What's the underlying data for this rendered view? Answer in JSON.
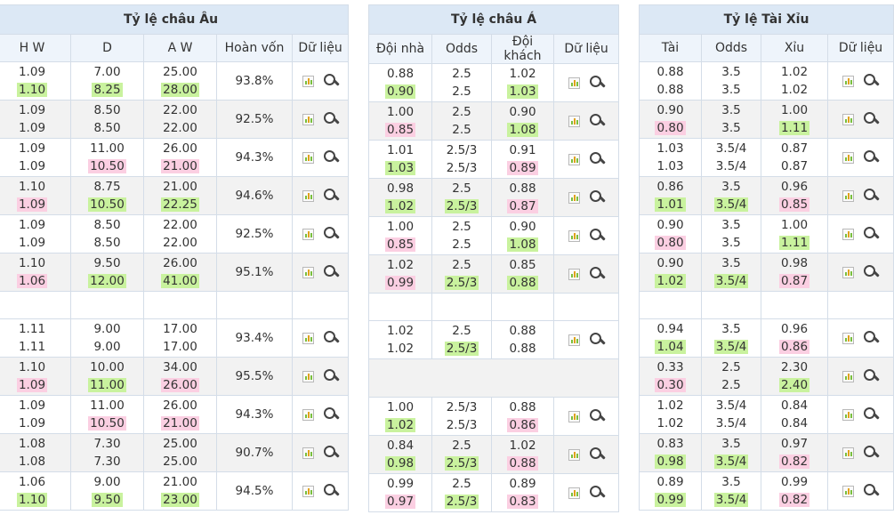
{
  "europe": {
    "title": "Tỷ lệ châu Âu",
    "columns": [
      "H W",
      "D",
      "A W",
      "Hoàn vốn",
      "Dữ liệu"
    ],
    "rows": [
      {
        "hw": [
          "1.09",
          "1.10"
        ],
        "d": [
          "7.00",
          "8.25"
        ],
        "aw": [
          "25.00",
          "28.00"
        ],
        "ret": "93.8%",
        "hw_t": "up",
        "d_t": "up",
        "aw_t": "up"
      },
      {
        "hw": [
          "1.09",
          "1.09"
        ],
        "d": [
          "8.50",
          "8.50"
        ],
        "aw": [
          "22.00",
          "22.00"
        ],
        "ret": "92.5%",
        "hw_t": "",
        "d_t": "",
        "aw_t": ""
      },
      {
        "hw": [
          "1.09",
          "1.09"
        ],
        "d": [
          "11.00",
          "10.50"
        ],
        "aw": [
          "26.00",
          "21.00"
        ],
        "ret": "94.3%",
        "hw_t": "",
        "d_t": "down",
        "aw_t": "down"
      },
      {
        "hw": [
          "1.10",
          "1.09"
        ],
        "d": [
          "8.75",
          "10.50"
        ],
        "aw": [
          "21.00",
          "22.25"
        ],
        "ret": "94.6%",
        "hw_t": "down",
        "d_t": "up",
        "aw_t": "up"
      },
      {
        "hw": [
          "1.09",
          "1.09"
        ],
        "d": [
          "8.50",
          "8.50"
        ],
        "aw": [
          "22.00",
          "22.00"
        ],
        "ret": "92.5%",
        "hw_t": "",
        "d_t": "",
        "aw_t": ""
      },
      {
        "hw": [
          "1.10",
          "1.06"
        ],
        "d": [
          "9.50",
          "12.00"
        ],
        "aw": [
          "26.00",
          "41.00"
        ],
        "ret": "95.1%",
        "hw_t": "down",
        "d_t": "up",
        "aw_t": "up"
      },
      {
        "blank": true
      },
      {
        "hw": [
          "1.11",
          "1.11"
        ],
        "d": [
          "9.00",
          "9.00"
        ],
        "aw": [
          "17.00",
          "17.00"
        ],
        "ret": "93.4%",
        "hw_t": "",
        "d_t": "",
        "aw_t": ""
      },
      {
        "hw": [
          "1.10",
          "1.09"
        ],
        "d": [
          "10.00",
          "11.00"
        ],
        "aw": [
          "34.00",
          "26.00"
        ],
        "ret": "95.5%",
        "hw_t": "down",
        "d_t": "up",
        "aw_t": "down"
      },
      {
        "hw": [
          "1.09",
          "1.09"
        ],
        "d": [
          "11.00",
          "10.50"
        ],
        "aw": [
          "26.00",
          "21.00"
        ],
        "ret": "94.3%",
        "hw_t": "",
        "d_t": "down",
        "aw_t": "down"
      },
      {
        "hw": [
          "1.08",
          "1.08"
        ],
        "d": [
          "7.30",
          "7.30"
        ],
        "aw": [
          "25.00",
          "25.00"
        ],
        "ret": "90.7%",
        "hw_t": "",
        "d_t": "",
        "aw_t": ""
      },
      {
        "hw": [
          "1.06",
          "1.10"
        ],
        "d": [
          "9.00",
          "9.50"
        ],
        "aw": [
          "21.00",
          "23.00"
        ],
        "ret": "94.5%",
        "hw_t": "up",
        "d_t": "up",
        "aw_t": "up"
      }
    ]
  },
  "asia": {
    "title": "Tỷ lệ châu Á",
    "columns": [
      "Đội nhà",
      "Odds",
      "Đội khách",
      "Dữ liệu"
    ],
    "rows": [
      {
        "home": [
          "0.88",
          "0.90"
        ],
        "odds": [
          "2.5",
          "2.5"
        ],
        "away": [
          "1.02",
          "1.03"
        ],
        "home_t": "up",
        "odds_t": "",
        "away_t": "up"
      },
      {
        "home": [
          "1.00",
          "0.85"
        ],
        "odds": [
          "2.5",
          "2.5"
        ],
        "away": [
          "0.90",
          "1.08"
        ],
        "home_t": "down",
        "odds_t": "",
        "away_t": "up"
      },
      {
        "home": [
          "1.01",
          "1.03"
        ],
        "odds": [
          "2.5/3",
          "2.5/3"
        ],
        "away": [
          "0.91",
          "0.89"
        ],
        "home_t": "up",
        "odds_t": "",
        "away_t": "down"
      },
      {
        "home": [
          "0.98",
          "1.02"
        ],
        "odds": [
          "2.5",
          "2.5/3"
        ],
        "away": [
          "0.88",
          "0.87"
        ],
        "home_t": "up",
        "odds_t": "up",
        "away_t": "down"
      },
      {
        "home": [
          "1.00",
          "0.85"
        ],
        "odds": [
          "2.5",
          "2.5"
        ],
        "away": [
          "0.90",
          "1.08"
        ],
        "home_t": "down",
        "odds_t": "",
        "away_t": "up"
      },
      {
        "home": [
          "1.02",
          "0.99"
        ],
        "odds": [
          "2.5",
          "2.5/3"
        ],
        "away": [
          "0.85",
          "0.88"
        ],
        "home_t": "down",
        "odds_t": "up",
        "away_t": "up"
      },
      {
        "blank": true
      },
      {
        "home": [
          "1.02",
          "1.02"
        ],
        "odds": [
          "2.5",
          "2.5/3"
        ],
        "away": [
          "0.88",
          "0.88"
        ],
        "home_t": "",
        "odds_t": "up",
        "away_t": ""
      },
      {
        "empty": true
      },
      {
        "home": [
          "1.00",
          "1.02"
        ],
        "odds": [
          "2.5/3",
          "2.5/3"
        ],
        "away": [
          "0.88",
          "0.86"
        ],
        "home_t": "up",
        "odds_t": "",
        "away_t": "down"
      },
      {
        "home": [
          "0.84",
          "0.98"
        ],
        "odds": [
          "2.5",
          "2.5/3"
        ],
        "away": [
          "1.02",
          "0.88"
        ],
        "home_t": "up",
        "odds_t": "up",
        "away_t": "down"
      },
      {
        "home": [
          "0.99",
          "0.97"
        ],
        "odds": [
          "2.5",
          "2.5/3"
        ],
        "away": [
          "0.89",
          "0.83"
        ],
        "home_t": "down",
        "odds_t": "up",
        "away_t": "down"
      }
    ]
  },
  "overunder": {
    "title": "Tỷ lệ Tài Xỉu",
    "columns": [
      "Tài",
      "Odds",
      "Xỉu",
      "Dữ liệu"
    ],
    "rows": [
      {
        "over": [
          "0.88",
          "0.88"
        ],
        "odds": [
          "3.5",
          "3.5"
        ],
        "under": [
          "1.02",
          "1.02"
        ],
        "over_t": "",
        "odds_t": "",
        "under_t": ""
      },
      {
        "over": [
          "0.90",
          "0.80"
        ],
        "odds": [
          "3.5",
          "3.5"
        ],
        "under": [
          "1.00",
          "1.11"
        ],
        "over_t": "down",
        "odds_t": "",
        "under_t": "up"
      },
      {
        "over": [
          "1.03",
          "1.03"
        ],
        "odds": [
          "3.5/4",
          "3.5/4"
        ],
        "under": [
          "0.87",
          "0.87"
        ],
        "over_t": "",
        "odds_t": "",
        "under_t": ""
      },
      {
        "over": [
          "0.86",
          "1.01"
        ],
        "odds": [
          "3.5",
          "3.5/4"
        ],
        "under": [
          "0.96",
          "0.85"
        ],
        "over_t": "up",
        "odds_t": "up",
        "under_t": "down"
      },
      {
        "over": [
          "0.90",
          "0.80"
        ],
        "odds": [
          "3.5",
          "3.5"
        ],
        "under": [
          "1.00",
          "1.11"
        ],
        "over_t": "down",
        "odds_t": "",
        "under_t": "up"
      },
      {
        "over": [
          "0.90",
          "1.02"
        ],
        "odds": [
          "3.5",
          "3.5/4"
        ],
        "under": [
          "0.98",
          "0.87"
        ],
        "over_t": "up",
        "odds_t": "up",
        "under_t": "down"
      },
      {
        "blank": true
      },
      {
        "over": [
          "0.94",
          "1.04"
        ],
        "odds": [
          "3.5",
          "3.5/4"
        ],
        "under": [
          "0.96",
          "0.86"
        ],
        "over_t": "up",
        "odds_t": "up",
        "under_t": "down"
      },
      {
        "over": [
          "0.33",
          "0.30"
        ],
        "odds": [
          "2.5",
          "2.5"
        ],
        "under": [
          "2.30",
          "2.40"
        ],
        "over_t": "down",
        "odds_t": "",
        "under_t": "up"
      },
      {
        "over": [
          "1.02",
          "1.02"
        ],
        "odds": [
          "3.5/4",
          "3.5/4"
        ],
        "under": [
          "0.84",
          "0.84"
        ],
        "over_t": "",
        "odds_t": "",
        "under_t": ""
      },
      {
        "over": [
          "0.83",
          "0.98"
        ],
        "odds": [
          "3.5",
          "3.5/4"
        ],
        "under": [
          "0.97",
          "0.82"
        ],
        "over_t": "up",
        "odds_t": "up",
        "under_t": "down"
      },
      {
        "over": [
          "0.89",
          "0.99"
        ],
        "odds": [
          "3.5",
          "3.5/4"
        ],
        "under": [
          "0.99",
          "0.82"
        ],
        "over_t": "up",
        "odds_t": "up",
        "under_t": "down"
      }
    ]
  },
  "colors": {
    "up": "#c9f29e",
    "down": "#fbcfe2",
    "header": "#dce8f5",
    "subheader": "#eef4fb",
    "stripe": "#f2f2f2"
  },
  "icons": {
    "chart": "bar-chart-icon",
    "search": "magnifier-icon"
  }
}
